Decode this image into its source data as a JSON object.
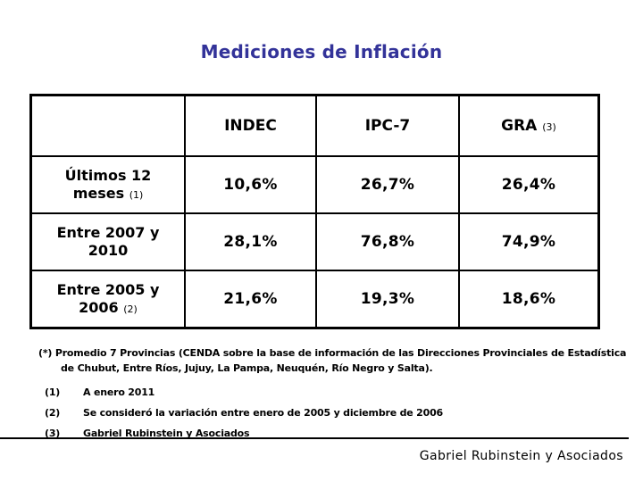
{
  "slide": {
    "title": "Mediciones de Inflación",
    "title_color": "#333399"
  },
  "table": {
    "header": {
      "col0": "",
      "col1": "INDEC",
      "col2": "IPC-7",
      "col3": "GRA",
      "col3_sup": "(3)"
    },
    "rows": [
      {
        "label": "Últimos 12 meses",
        "sup": "(1)",
        "values": [
          "10,6%",
          "26,7%",
          "26,4%"
        ]
      },
      {
        "label": "Entre 2007 y 2010",
        "sup": "",
        "values": [
          "28,1%",
          "76,8%",
          "74,9%"
        ]
      },
      {
        "label": "Entre 2005 y 2006",
        "sup": "(2)",
        "values": [
          "21,6%",
          "19,3%",
          "18,6%"
        ]
      }
    ]
  },
  "footnotes": {
    "star": "(*) Promedio 7 Provincias (CENDA sobre la base de información de las Direcciones Provinciales de Estadística de Chubut, Entre Ríos, Jujuy, La Pampa, Neuquén, Río Negro y Salta).",
    "items": [
      {
        "marker": "(1)",
        "text": "A enero 2011"
      },
      {
        "marker": "(2)",
        "text": "Se consideró la variación entre enero de 2005 y diciembre de 2006"
      },
      {
        "marker": "(3)",
        "text": "Gabriel Rubinstein y Asociados"
      }
    ]
  },
  "footer": {
    "credit": "Gabriel Rubinstein y Asociados"
  }
}
